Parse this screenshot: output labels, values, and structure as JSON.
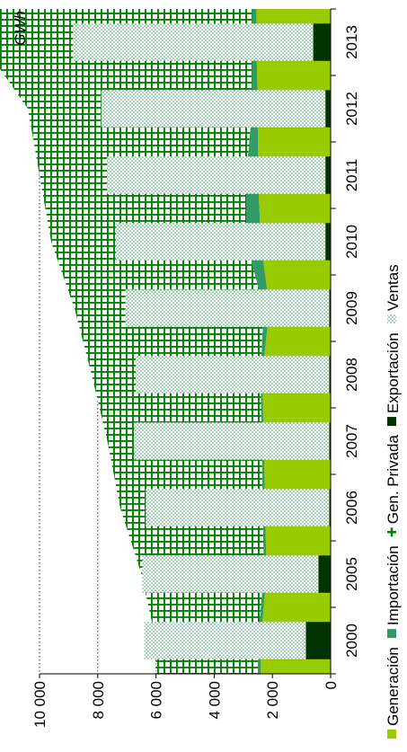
{
  "chart_data": {
    "type": "area",
    "orientation": "rotated-90-ccw",
    "unit_label": "GWh",
    "categories": [
      "2000",
      "2005",
      "2006",
      "2007",
      "2008",
      "2009",
      "2010",
      "2011",
      "2012",
      "2013"
    ],
    "ylim": [
      0,
      10000
    ],
    "y_ticks": [
      0,
      2000,
      4000,
      6000,
      8000,
      10000
    ],
    "y_tick_labels": [
      "0",
      "2 000",
      "4 000",
      "6 000",
      "8 000",
      "10 000"
    ],
    "grid": "dotted",
    "legend_position": "bottom",
    "stacked_area": [
      {
        "name": "Generación",
        "color": "#99cc00",
        "values": [
          2400,
          2200,
          2250,
          2300,
          2350,
          2100,
          2400,
          2500,
          2500,
          2550
        ]
      },
      {
        "name": "Importación",
        "color": "#339966",
        "values": [
          100,
          100,
          80,
          70,
          60,
          200,
          500,
          400,
          200,
          150
        ]
      },
      {
        "name": "Gen. Privada",
        "color": "#008000",
        "values": [
          3500,
          4200,
          4900,
          5300,
          5800,
          6500,
          6700,
          7100,
          7700,
          9300
        ]
      }
    ],
    "bars": [
      {
        "name": "Exportación",
        "color": "#003300",
        "values": [
          850,
          420,
          50,
          50,
          50,
          50,
          180,
          180,
          180,
          600
        ]
      },
      {
        "name": "Ventas",
        "color": "#339966",
        "values": [
          5550,
          6050,
          6300,
          6700,
          6650,
          7000,
          7200,
          7500,
          7700,
          8250
        ]
      }
    ],
    "legend": [
      {
        "label": "Generación",
        "color": "#99cc00",
        "pattern": "solid"
      },
      {
        "label": "Importación",
        "color": "#339966",
        "pattern": "solid"
      },
      {
        "label": "Gen. Privada",
        "color": "#008000",
        "pattern": "grid"
      },
      {
        "label": "Exportación",
        "color": "#003300",
        "pattern": "solid"
      },
      {
        "label": "Ventas",
        "color": "#339966",
        "pattern": "dots"
      }
    ]
  }
}
